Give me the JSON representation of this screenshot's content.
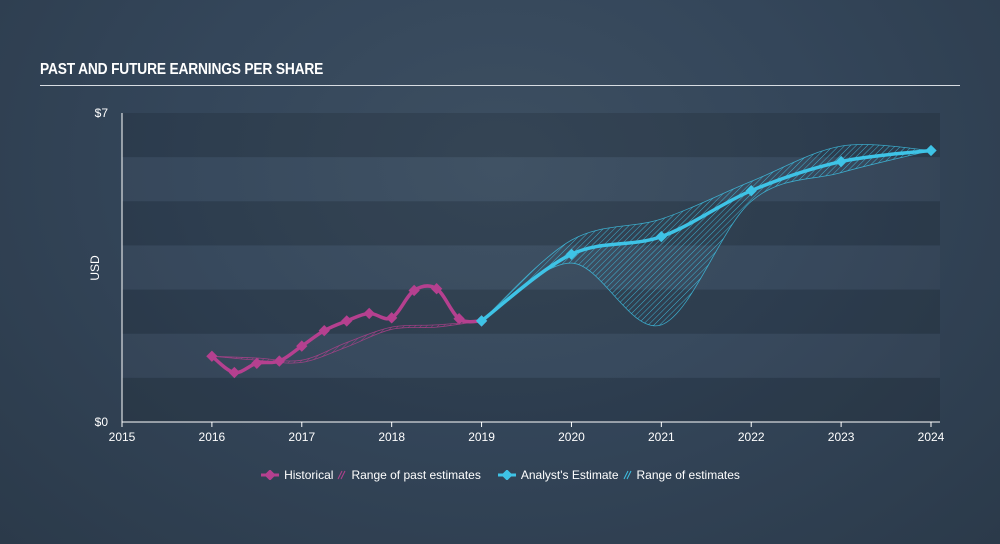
{
  "chart_title": "PAST AND FUTURE EARNINGS PER SHARE",
  "colors": {
    "historical": "#b5408f",
    "estimate": "#3ec3e6",
    "title_rule": "#d8dde3"
  },
  "legend": {
    "historical": "Historical",
    "past_range": "Range of past estimates",
    "estimate": "Analyst's Estimate",
    "estimate_range": "Range of estimates"
  },
  "chart_data": {
    "type": "line",
    "title": "PAST AND FUTURE EARNINGS PER SHARE",
    "xlabel": "",
    "ylabel": "USD",
    "xlim": [
      2015,
      2024.1
    ],
    "ylim": [
      0,
      7
    ],
    "x_ticks": [
      "2015",
      "2016",
      "2017",
      "2018",
      "2019",
      "2020",
      "2021",
      "2022",
      "2023",
      "2024"
    ],
    "y_ticks": [
      "$0",
      "$7"
    ],
    "grid": "horizontal bands",
    "legend_position": "bottom-center",
    "series": [
      {
        "name": "Historical",
        "points": [
          [
            2016.0,
            1.49
          ],
          [
            2016.25,
            1.12
          ],
          [
            2016.5,
            1.33
          ],
          [
            2016.75,
            1.38
          ],
          [
            2017.0,
            1.72
          ],
          [
            2017.25,
            2.07
          ],
          [
            2017.5,
            2.29
          ],
          [
            2017.75,
            2.46
          ],
          [
            2018.0,
            2.36
          ],
          [
            2018.25,
            2.98
          ],
          [
            2018.5,
            3.02
          ],
          [
            2018.75,
            2.34
          ],
          [
            2019.0,
            2.29
          ]
        ]
      },
      {
        "name": "Analyst's Estimate",
        "points": [
          [
            2019.0,
            2.29
          ],
          [
            2020.0,
            3.8
          ],
          [
            2021.0,
            4.2
          ],
          [
            2022.0,
            5.24
          ],
          [
            2023.0,
            5.9
          ],
          [
            2024.0,
            6.15
          ]
        ]
      }
    ],
    "ranges": [
      {
        "name": "Range of past estimates",
        "upper": [
          [
            2016.0,
            1.49
          ],
          [
            2016.5,
            1.45
          ],
          [
            2017.0,
            1.4
          ],
          [
            2017.5,
            1.8
          ],
          [
            2018.0,
            2.15
          ],
          [
            2018.5,
            2.2
          ],
          [
            2019.0,
            2.29
          ]
        ],
        "lower": [
          [
            2016.0,
            1.49
          ],
          [
            2016.5,
            1.4
          ],
          [
            2017.0,
            1.35
          ],
          [
            2017.5,
            1.7
          ],
          [
            2018.0,
            2.1
          ],
          [
            2018.5,
            2.15
          ],
          [
            2019.0,
            2.29
          ]
        ]
      },
      {
        "name": "Range of estimates",
        "upper": [
          [
            2019.0,
            2.29
          ],
          [
            2020.0,
            4.12
          ],
          [
            2021.0,
            4.6
          ],
          [
            2022.0,
            5.45
          ],
          [
            2023.0,
            6.25
          ],
          [
            2024.0,
            6.15
          ]
        ],
        "lower": [
          [
            2019.0,
            2.29
          ],
          [
            2020.0,
            3.6
          ],
          [
            2021.0,
            2.2
          ],
          [
            2022.0,
            5.0
          ],
          [
            2023.0,
            5.65
          ],
          [
            2024.0,
            6.15
          ]
        ]
      }
    ]
  }
}
